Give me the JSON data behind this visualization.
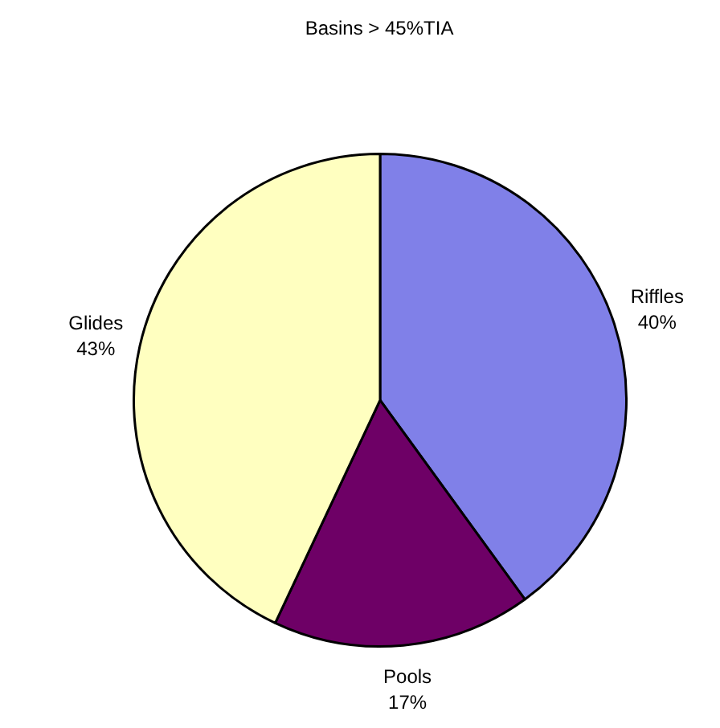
{
  "chart_data": {
    "type": "pie",
    "title": "Basins > 45%TIA",
    "categories": [
      "Riffles",
      "Pools",
      "Glides"
    ],
    "values": [
      40,
      17,
      43
    ],
    "value_labels": [
      "40%",
      "17%",
      "43%"
    ],
    "colors": [
      "#8080e8",
      "#6e0066",
      "#ffffc0"
    ],
    "legend": false
  }
}
